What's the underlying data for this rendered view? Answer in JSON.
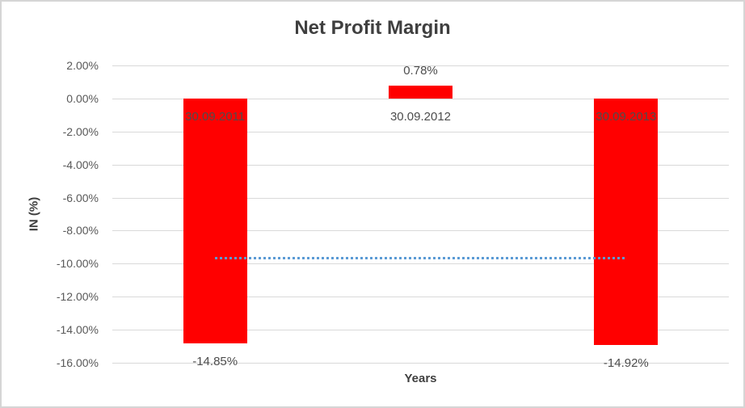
{
  "chart_data": {
    "type": "bar",
    "title": "Net Profit Margin",
    "xlabel": "Years",
    "ylabel": "IN (%)",
    "categories": [
      "30.09.2011",
      "30.09.2012",
      "30.09.2013"
    ],
    "values": [
      -14.85,
      0.78,
      -14.92
    ],
    "data_labels": [
      "-14.85%",
      "0.78%",
      "-14.92%"
    ],
    "ylim": [
      -16,
      2
    ],
    "ytick_step": 2,
    "ytick_labels": [
      "2.00%",
      "0.00%",
      "-2.00%",
      "-4.00%",
      "-6.00%",
      "-8.00%",
      "-10.00%",
      "-12.00%",
      "-14.00%",
      "-16.00%"
    ],
    "grid": true,
    "legend": "none",
    "bar_color": "#ff0000",
    "gridline_color": "#d9d9d9",
    "trendline": {
      "style": "dotted",
      "color": "#5b9bd5",
      "start_value": -9.63,
      "end_value": -9.7
    }
  }
}
